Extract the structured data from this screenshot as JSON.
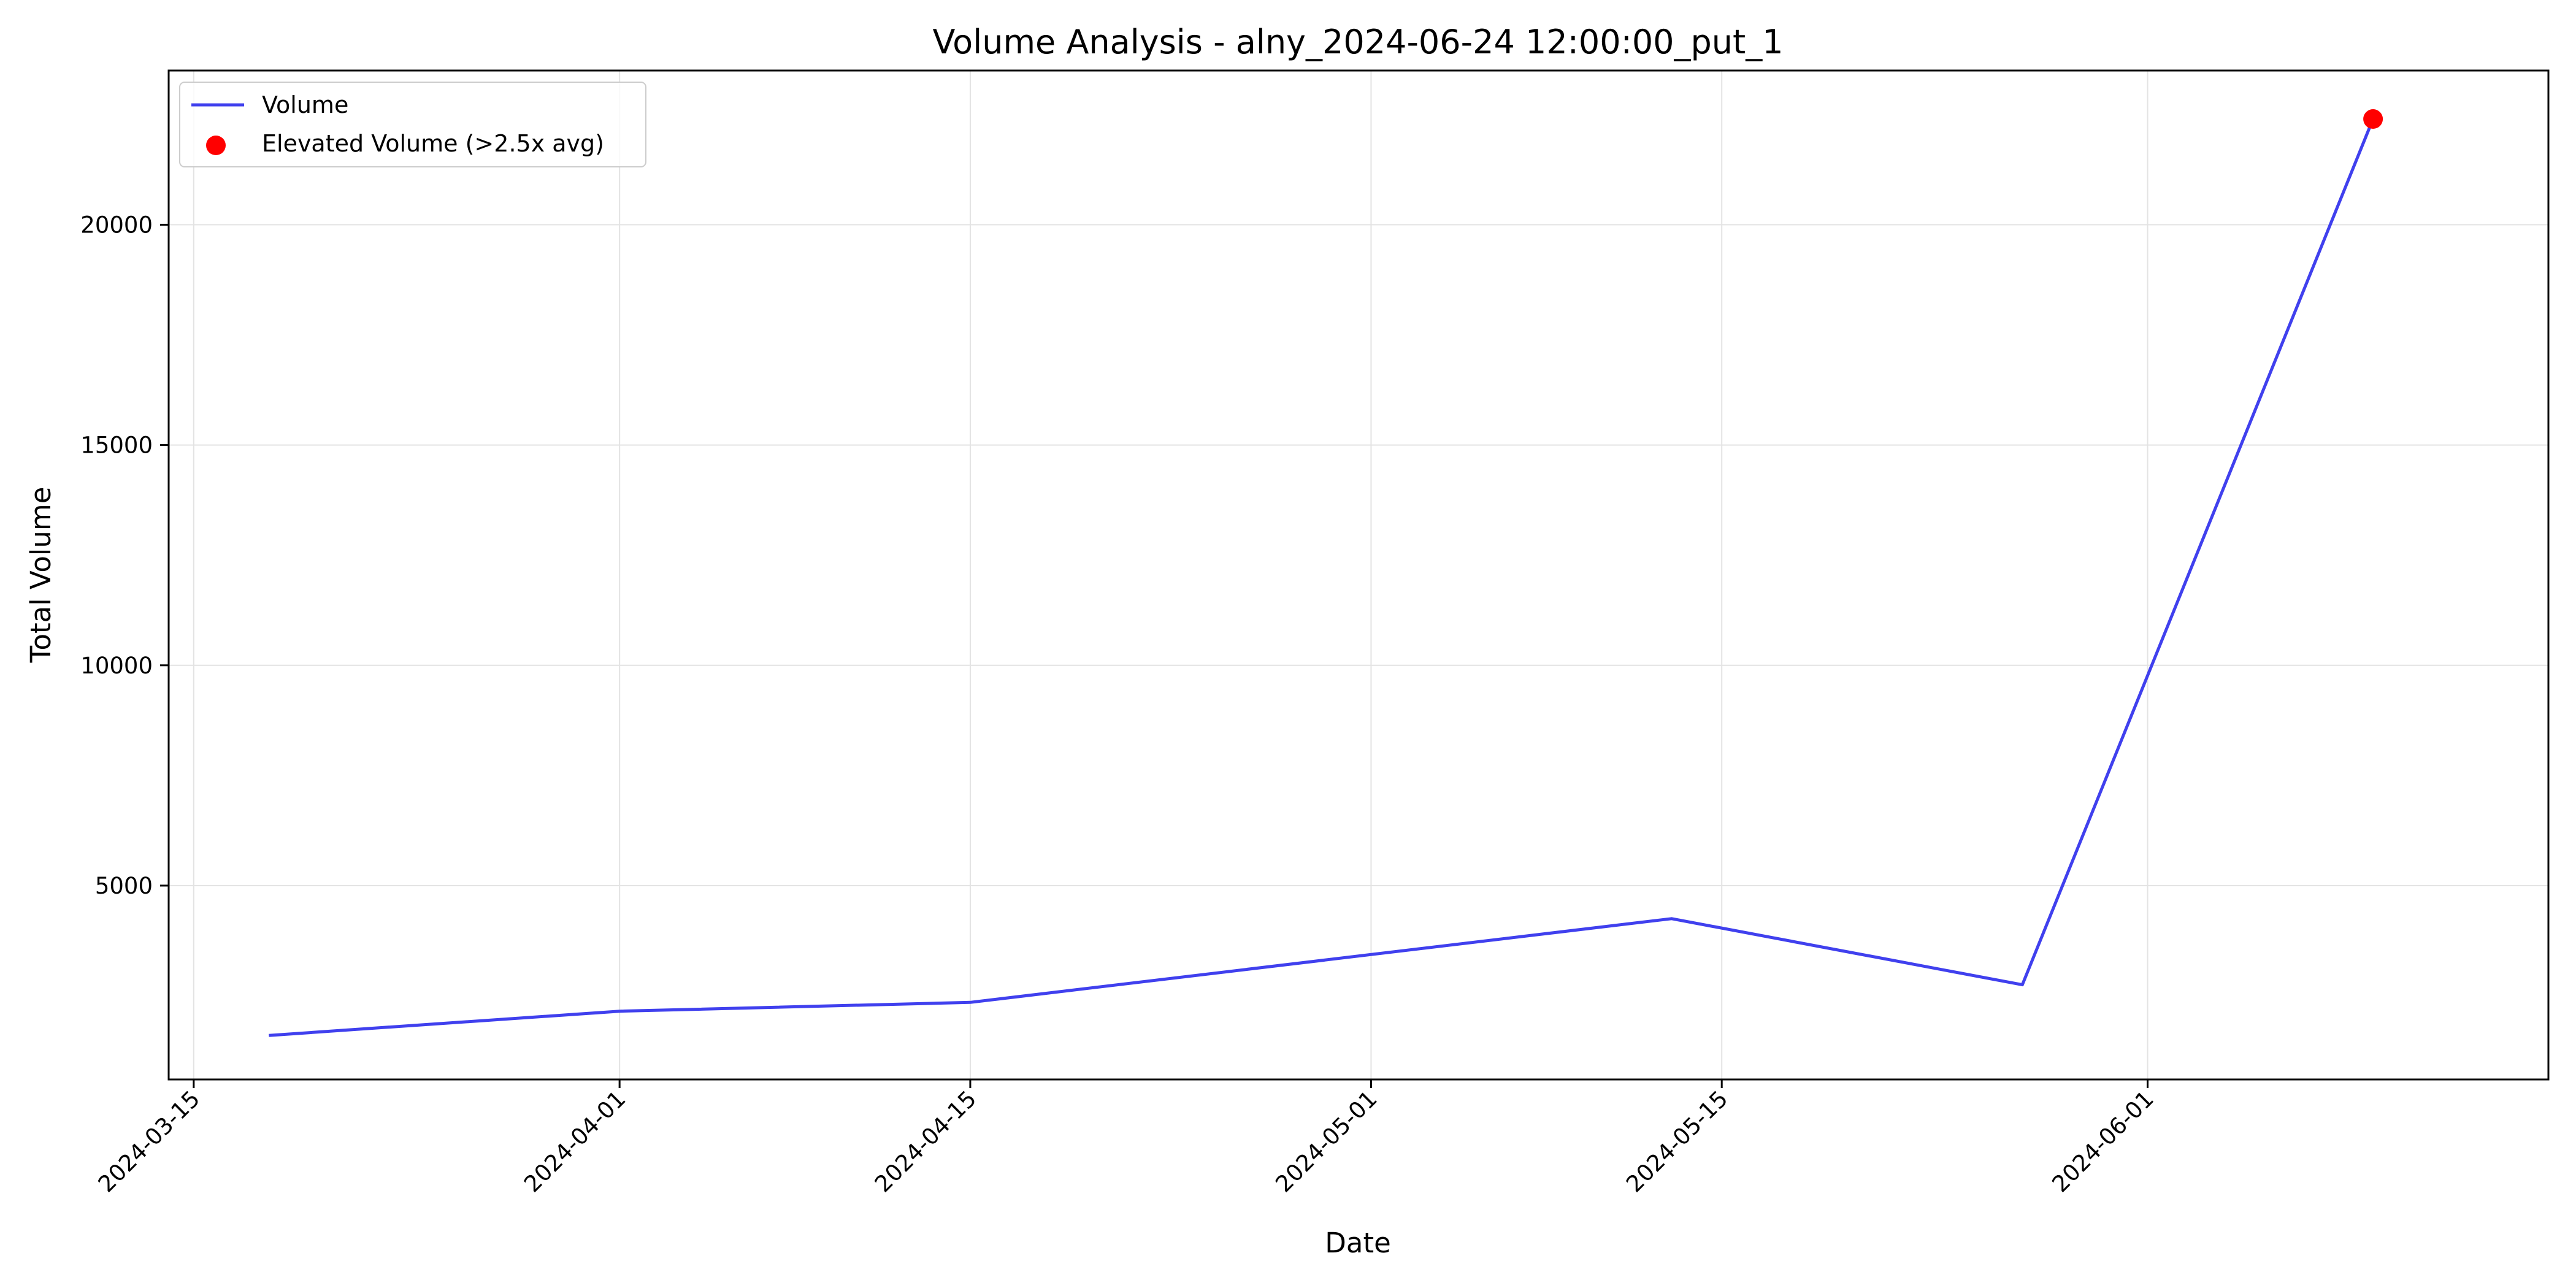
{
  "chart_data": {
    "type": "line",
    "title": "Volume Analysis - alny_2024-06-24 12:00:00_put_1",
    "xlabel": "Date",
    "ylabel": "Total Volume",
    "x_axis_type": "date",
    "xlim": [
      "2024-03-14",
      "2024-06-17"
    ],
    "ylim": [
      600,
      23500
    ],
    "x_ticks": [
      "2024-03-15",
      "2024-04-01",
      "2024-04-15",
      "2024-05-01",
      "2024-05-15",
      "2024-06-01"
    ],
    "y_ticks": [
      5000,
      10000,
      15000,
      20000
    ],
    "grid": true,
    "legend_position": "top-left",
    "series": [
      {
        "name": "Volume",
        "kind": "line",
        "color": "#4040ee",
        "points": [
          {
            "x": "2024-03-18",
            "y": 1600
          },
          {
            "x": "2024-04-01",
            "y": 2150
          },
          {
            "x": "2024-04-15",
            "y": 2350
          },
          {
            "x": "2024-05-13",
            "y": 4250
          },
          {
            "x": "2024-05-27",
            "y": 2750
          },
          {
            "x": "2024-06-10",
            "y": 22400
          }
        ]
      },
      {
        "name": "Elevated Volume (>2.5x avg)",
        "kind": "scatter",
        "color": "#ff0000",
        "points": [
          {
            "x": "2024-06-10",
            "y": 22400
          }
        ]
      }
    ]
  }
}
